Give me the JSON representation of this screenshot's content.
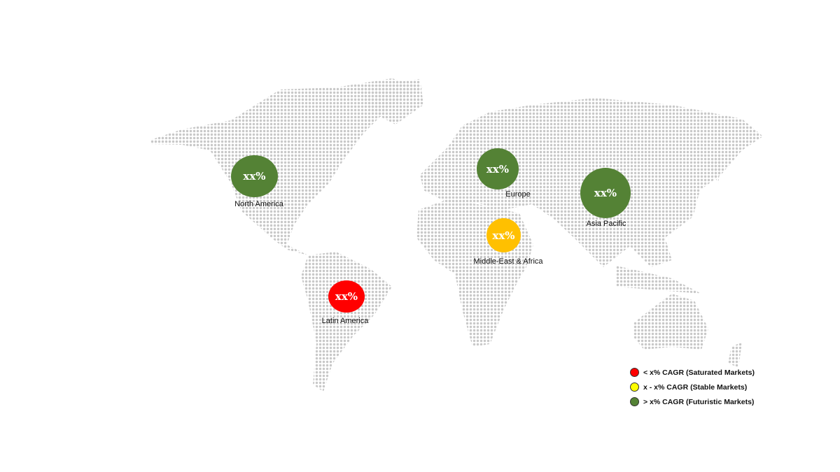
{
  "regions": [
    {
      "name": "North America",
      "value": "xx%",
      "color": "#548235"
    },
    {
      "name": "Europe",
      "value": "xx%",
      "color": "#548235"
    },
    {
      "name": "Asia Pacific",
      "value": "xx%",
      "color": "#548235"
    },
    {
      "name": "Middle-East & Africa",
      "value": "xx%",
      "color": "#ffc000"
    },
    {
      "name": "Latin America",
      "value": "xx%",
      "color": "#ff0000"
    }
  ],
  "legend": [
    {
      "label": "< x% CAGR (Saturated Markets)",
      "color": "#ff0000"
    },
    {
      "label": "x - x% CAGR (Stable Markets)",
      "color": "#ffff00"
    },
    {
      "label": "> x% CAGR (Futuristic Markets)",
      "color": "#548235"
    }
  ],
  "map_dot_color": "#c8c8c8"
}
